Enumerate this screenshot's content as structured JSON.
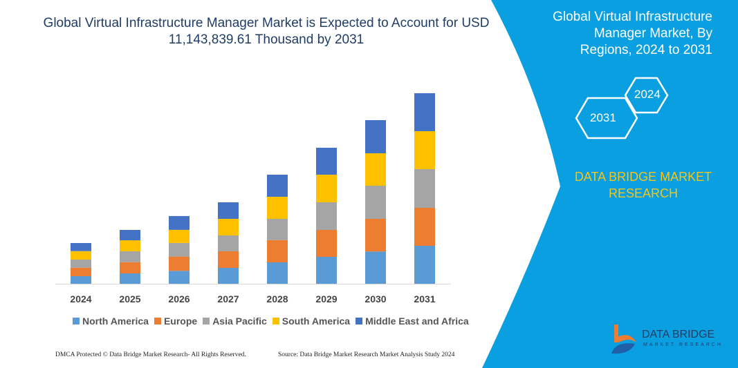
{
  "header": {
    "title": "Global Virtual Infrastructure Manager Market is Expected to Account for USD 11,143,839.61 Thousand by 2031"
  },
  "side": {
    "title": "Global Virtual Infrastructure Manager Market, By Regions, 2024 to 2031",
    "hex_start": "2024",
    "hex_end": "2031",
    "brand": "DATA BRIDGE MARKET RESEARCH",
    "panel_color": "#0a9fe0",
    "brand_color": "#f5c518"
  },
  "footer": {
    "left": "DMCA Protected © Data Bridge Market Research-  All Rights Reserved.",
    "right": "Source: Data Bridge Market Research  Market Analysis Study 2024"
  },
  "logo": {
    "name": "DATA BRIDGE",
    "sub": "MARKET RESEARCH"
  },
  "chart_data": {
    "type": "bar",
    "stacked": true,
    "grid": false,
    "legend": "bottom",
    "categories": [
      "2024",
      "2025",
      "2026",
      "2027",
      "2028",
      "2029",
      "2030",
      "2031"
    ],
    "series": [
      {
        "name": "North America",
        "color": "#5b9bd5",
        "values": [
          11,
          15,
          18.7,
          23,
          31,
          39,
          46.7,
          55
        ]
      },
      {
        "name": "Europe",
        "color": "#ed7d31",
        "values": [
          12.3,
          16.3,
          20.7,
          24,
          32.3,
          39,
          47.3,
          55
        ]
      },
      {
        "name": "Asia Pacific",
        "color": "#a5a5a5",
        "values": [
          11.7,
          15.7,
          19.7,
          23,
          30.7,
          40,
          48,
          56
        ]
      },
      {
        "name": "South America",
        "color": "#ffc000",
        "values": [
          12.3,
          16,
          19,
          24,
          32,
          40,
          47,
          55
        ]
      },
      {
        "name": "Middle East and Africa",
        "color": "#4472c4",
        "values": [
          11.7,
          15,
          20,
          24,
          32,
          39,
          48,
          55
        ]
      }
    ]
  }
}
